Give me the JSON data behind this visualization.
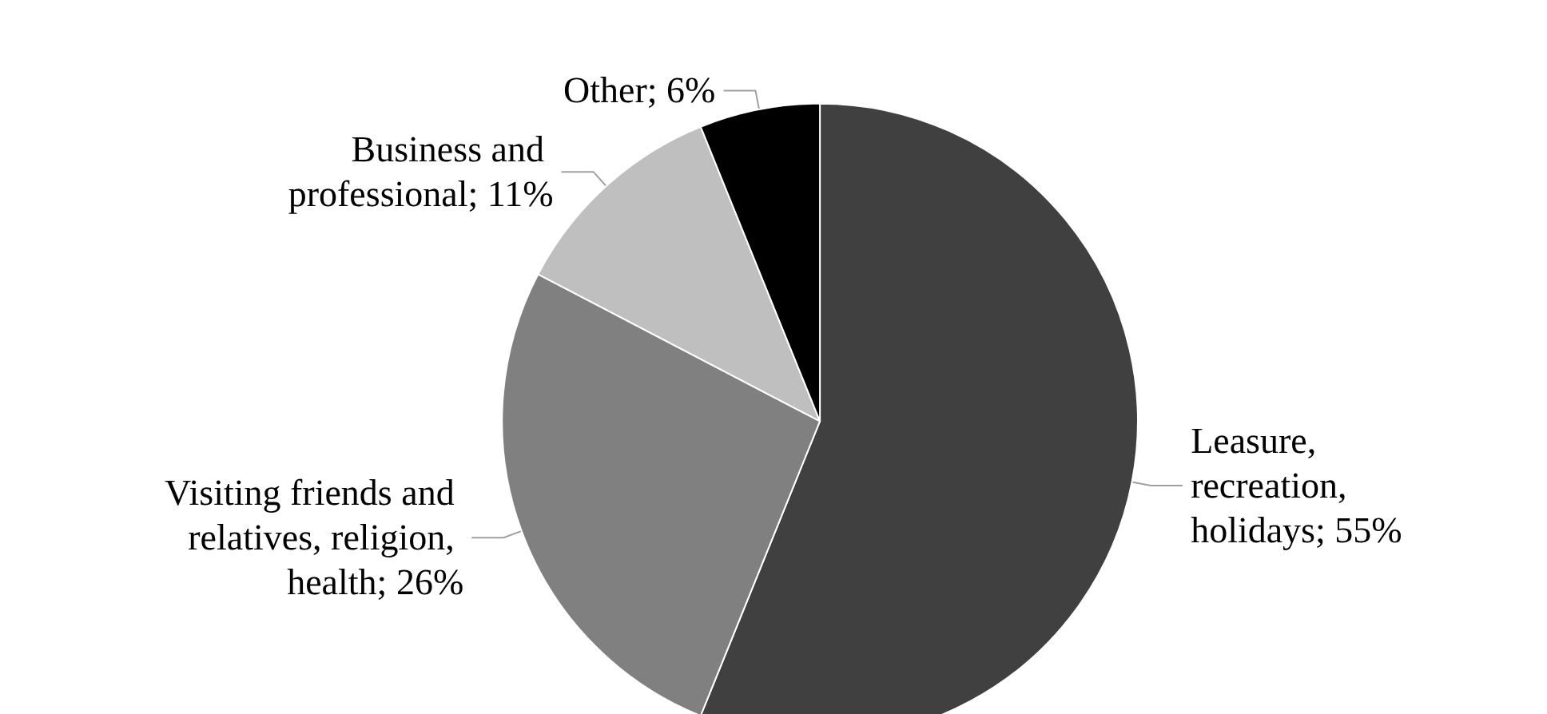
{
  "chart_data": {
    "type": "pie",
    "categories": [
      "Leasure, recreation, holidays",
      "Visiting friends and relatives, religion, health",
      "Business and professional",
      "Other"
    ],
    "values": [
      55,
      26,
      11,
      6
    ],
    "colors": [
      "#404040",
      "#808080",
      "#bfbfbf",
      "#000000"
    ],
    "value_labels": [
      "55%",
      "26%",
      "11%",
      "6%"
    ],
    "legend": false
  }
}
